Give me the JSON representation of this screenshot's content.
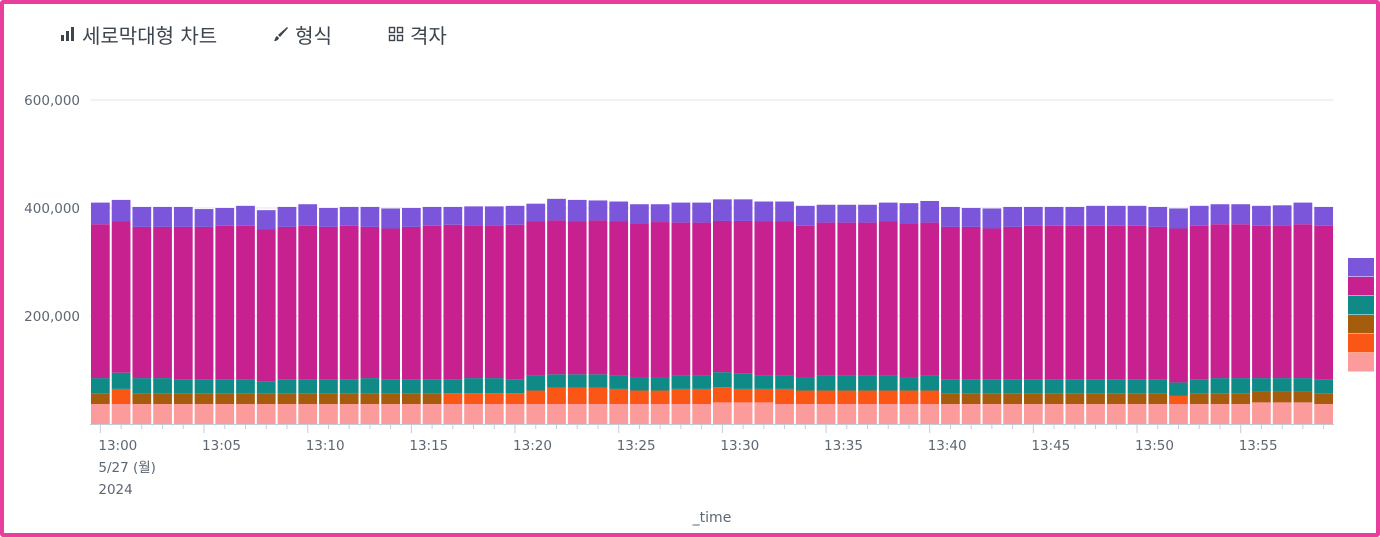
{
  "toolbar": {
    "items": [
      {
        "label": "세로막대형 차트",
        "icon": "bar-chart-icon"
      },
      {
        "label": "형식",
        "icon": "paintbrush-icon"
      },
      {
        "label": "격자",
        "icon": "grid-icon"
      }
    ]
  },
  "chart_data": {
    "type": "bar",
    "stacked": true,
    "xlabel": "_time",
    "first_tick_date": "5/27 (월)",
    "first_tick_year": "2024",
    "y_ticks": [
      "200,000",
      "400,000",
      "600,000"
    ],
    "ylim": [
      0,
      600000
    ],
    "grid": true,
    "legend": "right (color swatches only)",
    "x_ticks": [
      "13:00",
      "13:05",
      "13:10",
      "13:15",
      "13:20",
      "13:25",
      "13:30",
      "13:35",
      "13:40",
      "13:45",
      "13:50",
      "13:55"
    ],
    "categories": [
      "13:00",
      "13:01",
      "13:02",
      "13:03",
      "13:04",
      "13:05",
      "13:06",
      "13:07",
      "13:08",
      "13:09",
      "13:10",
      "13:11",
      "13:12",
      "13:13",
      "13:14",
      "13:15",
      "13:16",
      "13:17",
      "13:18",
      "13:19",
      "13:20",
      "13:21",
      "13:22",
      "13:23",
      "13:24",
      "13:25",
      "13:26",
      "13:27",
      "13:28",
      "13:29",
      "13:30",
      "13:31",
      "13:32",
      "13:33",
      "13:34",
      "13:35",
      "13:36",
      "13:37",
      "13:38",
      "13:39",
      "13:40",
      "13:41",
      "13:42",
      "13:43",
      "13:44",
      "13:45",
      "13:46",
      "13:47",
      "13:48",
      "13:49",
      "13:50",
      "13:51",
      "13:52",
      "13:53",
      "13:54",
      "13:55",
      "13:56",
      "13:57",
      "13:58",
      "13:59"
    ],
    "series": [
      {
        "color": "#fc9b9b",
        "values": [
          37000,
          37000,
          37000,
          37000,
          37000,
          37000,
          37000,
          37000,
          37000,
          37000,
          37000,
          37000,
          37000,
          37000,
          37000,
          37000,
          37000,
          37000,
          37000,
          37000,
          37000,
          37000,
          37000,
          37000,
          37000,
          37000,
          37000,
          37000,
          37000,
          37000,
          40000,
          40000,
          40000,
          37000,
          37000,
          37000,
          37000,
          37000,
          37000,
          37000,
          37000,
          37000,
          37000,
          37000,
          37000,
          37000,
          37000,
          37000,
          37000,
          37000,
          37000,
          37000,
          37000,
          37000,
          37000,
          37000,
          40000,
          40000,
          40000,
          37000
        ]
      },
      {
        "color": "#fa5616",
        "values": [
          0,
          28000,
          0,
          0,
          0,
          0,
          0,
          0,
          0,
          0,
          0,
          0,
          0,
          0,
          0,
          0,
          0,
          20000,
          20000,
          20000,
          20000,
          25000,
          30000,
          30000,
          30000,
          28000,
          25000,
          25000,
          28000,
          28000,
          28000,
          25000,
          25000,
          28000,
          25000,
          25000,
          25000,
          25000,
          25000,
          25000,
          25000,
          0,
          0,
          0,
          0,
          0,
          0,
          0,
          0,
          0,
          0,
          0,
          15000,
          0,
          0,
          0,
          0,
          0,
          0,
          0
        ]
      },
      {
        "color": "#a65c0d",
        "values": [
          20000,
          0,
          20000,
          20000,
          20000,
          20000,
          20000,
          20000,
          20000,
          20000,
          20000,
          20000,
          20000,
          20000,
          20000,
          20000,
          20000,
          0,
          0,
          0,
          0,
          0,
          0,
          0,
          0,
          0,
          0,
          0,
          0,
          0,
          0,
          0,
          0,
          0,
          0,
          0,
          0,
          0,
          0,
          0,
          0,
          20000,
          20000,
          20000,
          20000,
          20000,
          20000,
          20000,
          20000,
          20000,
          20000,
          20000,
          0,
          20000,
          20000,
          20000,
          20000,
          20000,
          20000,
          20000
        ]
      },
      {
        "color": "#0f8a86",
        "values": [
          28000,
          30000,
          28000,
          28000,
          25000,
          25000,
          25000,
          25000,
          22000,
          25000,
          25000,
          25000,
          25000,
          28000,
          25000,
          25000,
          25000,
          25000,
          28000,
          28000,
          25000,
          28000,
          25000,
          25000,
          25000,
          25000,
          25000,
          25000,
          25000,
          25000,
          28000,
          28000,
          25000,
          25000,
          25000,
          28000,
          28000,
          28000,
          28000,
          25000,
          28000,
          25000,
          25000,
          25000,
          25000,
          25000,
          25000,
          25000,
          25000,
          25000,
          25000,
          25000,
          25000,
          25000,
          28000,
          28000,
          25000,
          25000,
          25000,
          25000
        ]
      },
      {
        "color": "#c7218f",
        "values": [
          285000,
          280000,
          280000,
          280000,
          283000,
          283000,
          285000,
          285000,
          282000,
          283000,
          285000,
          283000,
          285000,
          280000,
          280000,
          283000,
          285000,
          287000,
          283000,
          283000,
          287000,
          285000,
          285000,
          283000,
          285000,
          285000,
          285000,
          287000,
          283000,
          283000,
          280000,
          283000,
          285000,
          285000,
          280000,
          283000,
          283000,
          283000,
          285000,
          285000,
          283000,
          283000,
          283000,
          280000,
          283000,
          285000,
          285000,
          285000,
          285000,
          285000,
          285000,
          283000,
          285000,
          285000,
          285000,
          285000,
          282000,
          283000,
          285000,
          285000
        ]
      },
      {
        "color": "#7b56db",
        "values": [
          40000,
          40000,
          37000,
          37000,
          37000,
          33000,
          33000,
          37000,
          35000,
          37000,
          40000,
          35000,
          35000,
          37000,
          37000,
          35000,
          35000,
          33000,
          35000,
          35000,
          35000,
          33000,
          40000,
          40000,
          37000,
          37000,
          35000,
          33000,
          37000,
          37000,
          40000,
          40000,
          37000,
          37000,
          37000,
          33000,
          33000,
          33000,
          35000,
          37000,
          40000,
          37000,
          35000,
          37000,
          37000,
          35000,
          35000,
          35000,
          37000,
          37000,
          37000,
          37000,
          37000,
          37000,
          37000,
          37000,
          37000,
          37000,
          40000,
          35000
        ]
      }
    ]
  }
}
